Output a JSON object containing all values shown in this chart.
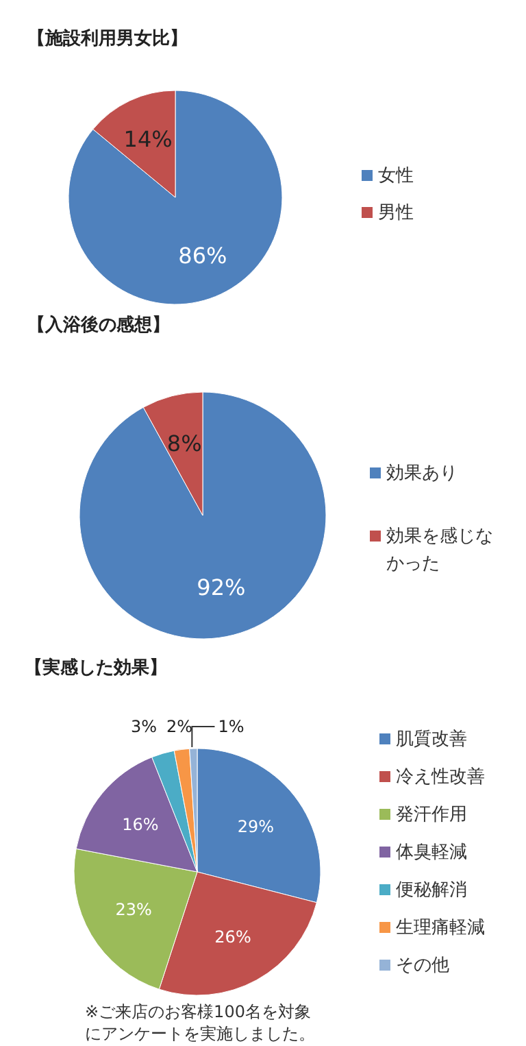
{
  "chart_data": [
    {
      "type": "pie",
      "title": "【施設利用男女比】",
      "categories": [
        "女性",
        "男性"
      ],
      "values": [
        86,
        14
      ],
      "colors": [
        "#4f81bd",
        "#c0504d"
      ],
      "value_labels": [
        "86%",
        "14%"
      ],
      "legend": "right"
    },
    {
      "type": "pie",
      "title": "【入浴後の感想】",
      "categories": [
        "効果あり",
        "効果を感じなかった"
      ],
      "values": [
        92,
        8
      ],
      "colors": [
        "#4f81bd",
        "#c0504d"
      ],
      "value_labels": [
        "92%",
        "8%"
      ],
      "legend": "right"
    },
    {
      "type": "pie",
      "title": "【実感した効果】",
      "categories": [
        "肌質改善",
        "冷え性改善",
        "発汗作用",
        "体臭軽減",
        "便秘解消",
        "生理痛軽減",
        "その他"
      ],
      "values": [
        29,
        26,
        23,
        16,
        3,
        2,
        1
      ],
      "colors": [
        "#4f81bd",
        "#c0504d",
        "#9bbb59",
        "#8064a2",
        "#4bacc6",
        "#f79646",
        "#95b3d7"
      ],
      "value_labels": [
        "29%",
        "26%",
        "23%",
        "16%",
        "3%",
        "2%",
        "1%"
      ],
      "legend": "right",
      "annotations": [
        "※ご来店のお客様100名を対象にアンケートを実施しました。"
      ]
    }
  ]
}
